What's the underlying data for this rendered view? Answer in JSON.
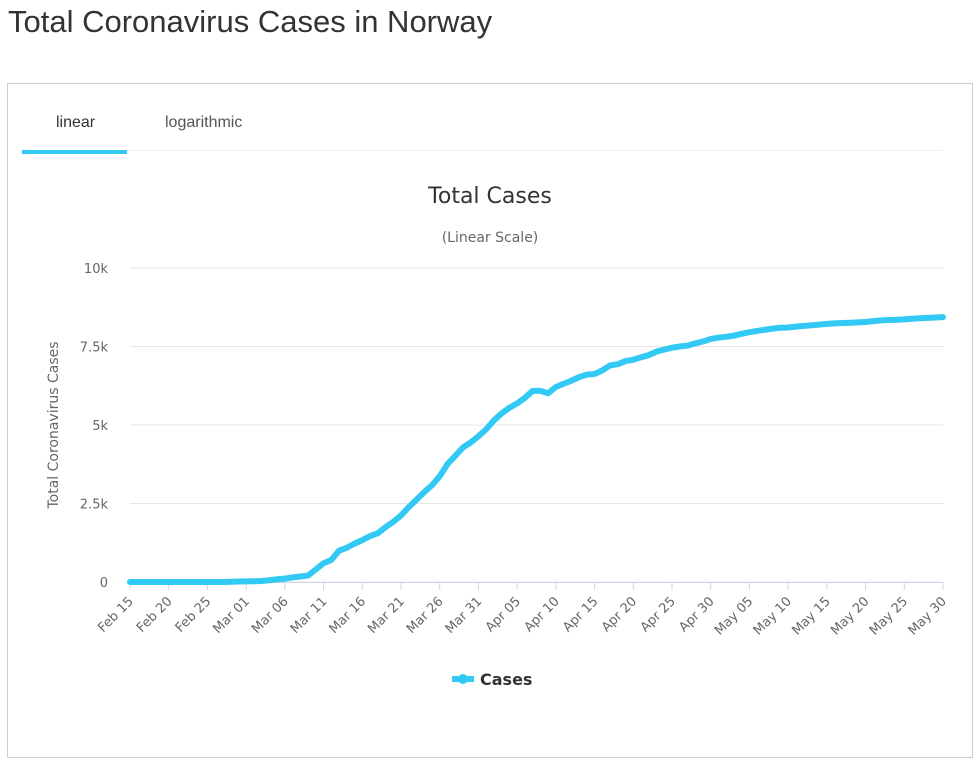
{
  "page_title": "Total Coronavirus Cases in Norway",
  "tabs": [
    {
      "label": "linear",
      "active": true
    },
    {
      "label": "logarithmic",
      "active": false
    }
  ],
  "chart_data": {
    "type": "line",
    "title": "Total Cases",
    "subtitle": "(Linear Scale)",
    "y_label": "Total Coronavirus Cases",
    "categories": [
      "Feb 15",
      null,
      null,
      null,
      null,
      "Feb 20",
      null,
      null,
      null,
      null,
      "Feb 25",
      null,
      null,
      null,
      null,
      "Mar 01",
      null,
      null,
      null,
      null,
      "Mar 06",
      null,
      null,
      null,
      null,
      "Mar 11",
      null,
      null,
      null,
      null,
      "Mar 16",
      null,
      null,
      null,
      null,
      "Mar 21",
      null,
      null,
      null,
      null,
      "Mar 26",
      null,
      null,
      null,
      null,
      "Mar 31",
      null,
      null,
      null,
      null,
      "Apr 05",
      null,
      null,
      null,
      null,
      "Apr 10",
      null,
      null,
      null,
      null,
      "Apr 15",
      null,
      null,
      null,
      null,
      "Apr 20",
      null,
      null,
      null,
      null,
      "Apr 25",
      null,
      null,
      null,
      null,
      "Apr 30",
      null,
      null,
      null,
      null,
      "May 05",
      null,
      null,
      null,
      null,
      "May 10",
      null,
      null,
      null,
      null,
      "May 15",
      null,
      null,
      null,
      null,
      "May 20",
      null,
      null,
      null,
      null,
      "May 25",
      null,
      null,
      null,
      null,
      "May 30"
    ],
    "series": [
      {
        "name": "Cases",
        "color": "#33c9f5",
        "values": [
          0,
          0,
          0,
          0,
          0,
          0,
          0,
          0,
          0,
          0,
          0,
          1,
          1,
          6,
          15,
          19,
          25,
          32,
          56,
          87,
          108,
          147,
          176,
          205,
          400,
          598,
          702,
          996,
          1090,
          1221,
          1333,
          1463,
          1550,
          1746,
          1914,
          2118,
          2385,
          2621,
          2863,
          3084,
          3369,
          3755,
          4015,
          4284,
          4445,
          4641,
          4863,
          5147,
          5370,
          5550,
          5687,
          5865,
          6086,
          6086,
          6010,
          6211,
          6314,
          6409,
          6525,
          6603,
          6623,
          6740,
          6896,
          6937,
          7036,
          7078,
          7156,
          7225,
          7338,
          7401,
          7463,
          7499,
          7527,
          7599,
          7660,
          7738,
          7783,
          7809,
          7847,
          7904,
          7955,
          7996,
          8034,
          8070,
          8099,
          8105,
          8132,
          8157,
          8175,
          8196,
          8219,
          8237,
          8249,
          8257,
          8267,
          8281,
          8309,
          8332,
          8346,
          8352,
          8364,
          8383,
          8401,
          8411,
          8422,
          8437
        ]
      }
    ],
    "ylim": [
      0,
      10000
    ],
    "yticks": [
      0,
      {
        "value": 2500,
        "label": "2.5k"
      },
      {
        "value": 5000,
        "label": "5k"
      },
      {
        "value": 7500,
        "label": "7.5k"
      },
      {
        "value": 10000,
        "label": "10k"
      }
    ],
    "grid": true
  }
}
